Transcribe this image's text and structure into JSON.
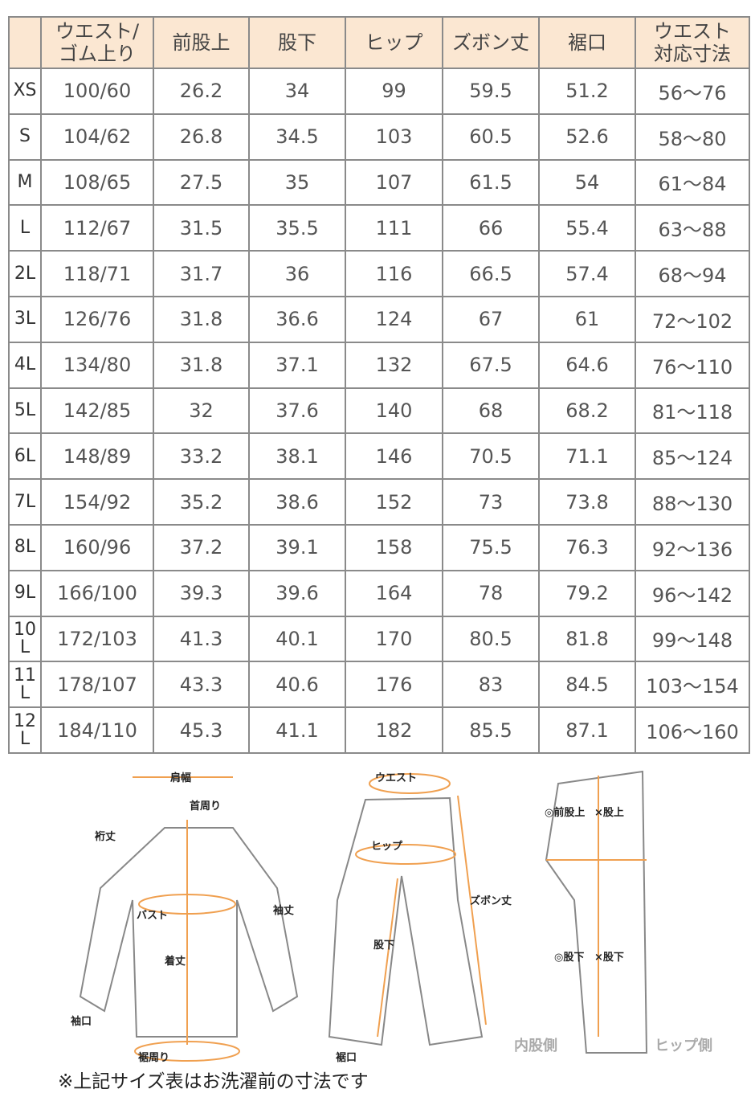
{
  "table": {
    "headers": [
      "",
      "ウエスト/\nゴム上り",
      "前股上",
      "股下",
      "ヒップ",
      "ズボン丈",
      "裾口",
      "ウエスト\n対応寸法"
    ],
    "rows": [
      [
        "XS",
        "100/60",
        "26.2",
        "34",
        "99",
        "59.5",
        "51.2",
        "56～76"
      ],
      [
        "S",
        "104/62",
        "26.8",
        "34.5",
        "103",
        "60.5",
        "52.6",
        "58～80"
      ],
      [
        "M",
        "108/65",
        "27.5",
        "35",
        "107",
        "61.5",
        "54",
        "61～84"
      ],
      [
        "L",
        "112/67",
        "31.5",
        "35.5",
        "111",
        "66",
        "55.4",
        "63～88"
      ],
      [
        "2L",
        "118/71",
        "31.7",
        "36",
        "116",
        "66.5",
        "57.4",
        "68～94"
      ],
      [
        "3L",
        "126/76",
        "31.8",
        "36.6",
        "124",
        "67",
        "61",
        "72～102"
      ],
      [
        "4L",
        "134/80",
        "31.8",
        "37.1",
        "132",
        "67.5",
        "64.6",
        "76～110"
      ],
      [
        "5L",
        "142/85",
        "32",
        "37.6",
        "140",
        "68",
        "68.2",
        "81～118"
      ],
      [
        "6L",
        "148/89",
        "33.2",
        "38.1",
        "146",
        "70.5",
        "71.1",
        "85～124"
      ],
      [
        "7L",
        "154/92",
        "35.2",
        "38.6",
        "152",
        "73",
        "73.8",
        "88～130"
      ],
      [
        "8L",
        "160/96",
        "37.2",
        "39.1",
        "158",
        "75.5",
        "76.3",
        "92～136"
      ],
      [
        "9L",
        "166/100",
        "39.3",
        "39.6",
        "164",
        "78",
        "79.2",
        "96～142"
      ],
      [
        "10L",
        "172/103",
        "41.3",
        "40.1",
        "170",
        "80.5",
        "81.8",
        "99～148"
      ],
      [
        "11L",
        "178/107",
        "43.3",
        "40.6",
        "176",
        "83",
        "84.5",
        "103～154"
      ],
      [
        "12L",
        "184/110",
        "45.3",
        "41.1",
        "182",
        "85.5",
        "87.1",
        "106～160"
      ]
    ]
  },
  "diagram": {
    "shirt": {
      "shoulder": "肩幅",
      "neck": "首周り",
      "yuki": "裄丈",
      "sleeve": "袖丈",
      "bust": "バスト",
      "length": "着丈",
      "cuff": "袖口",
      "hem": "裾周り"
    },
    "pants": {
      "waist": "ウエスト",
      "hip": "ヒップ",
      "inseam": "股下",
      "length": "ズボン丈",
      "hem": "裾口"
    },
    "side": {
      "front_rise": "◎前股上",
      "rise": "×股上",
      "inseam_o": "◎股下",
      "inseam_x": "×股下",
      "inner": "内股側",
      "hip_side": "ヒップ側"
    }
  },
  "note": "※上記サイズ表はお洗濯前の寸法です",
  "colors": {
    "header_bg": "#fbe7d2",
    "accent": "#f0a050"
  }
}
